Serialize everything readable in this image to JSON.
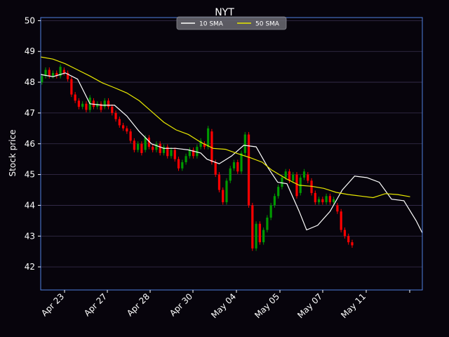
{
  "chart_data": {
    "type": "candlestick",
    "title": "NYT",
    "xlabel": "",
    "ylabel": "Stock price",
    "ylim": [
      41.25,
      50.1
    ],
    "yticks": [
      42,
      43,
      44,
      45,
      46,
      47,
      48,
      49,
      50
    ],
    "xtick_labels": [
      "Apr 23",
      "Apr 27",
      "Apr 28",
      "Apr 30",
      "May 04",
      "May 05",
      "May 07",
      "May 11",
      ""
    ],
    "grid": true,
    "legend_position": "top-center",
    "colors": {
      "background": "#07040c",
      "axes_frame": "#4f80e0",
      "grid": "#3a3050",
      "text": "#ffffff",
      "up": "#009a00",
      "down": "#ff0000",
      "sma10": "#ffffff",
      "sma50": "#e8e800"
    },
    "series": [
      {
        "name": "10 SMA",
        "points": [
          [
            0,
            48.25
          ],
          [
            20,
            48.18
          ],
          [
            40,
            48.3
          ],
          [
            60,
            48.1
          ],
          [
            80,
            47.3
          ],
          [
            100,
            47.25
          ],
          [
            120,
            47.25
          ],
          [
            140,
            46.9
          ],
          [
            160,
            46.4
          ],
          [
            180,
            46.0
          ],
          [
            200,
            45.85
          ],
          [
            220,
            45.85
          ],
          [
            240,
            45.8
          ],
          [
            260,
            45.7
          ],
          [
            270,
            45.5
          ],
          [
            290,
            45.35
          ],
          [
            310,
            45.6
          ],
          [
            330,
            45.95
          ],
          [
            350,
            45.9
          ],
          [
            370,
            45.2
          ],
          [
            385,
            44.75
          ],
          [
            400,
            44.7
          ],
          [
            420,
            43.8
          ],
          [
            432,
            43.2
          ],
          [
            450,
            43.35
          ],
          [
            470,
            43.8
          ],
          [
            490,
            44.5
          ],
          [
            510,
            44.95
          ],
          [
            530,
            44.9
          ],
          [
            550,
            44.75
          ],
          [
            570,
            44.2
          ],
          [
            590,
            44.15
          ],
          [
            610,
            43.5
          ],
          [
            620,
            43.1
          ]
        ]
      },
      {
        "name": "50 SMA",
        "points": [
          [
            0,
            48.82
          ],
          [
            20,
            48.75
          ],
          [
            40,
            48.6
          ],
          [
            60,
            48.4
          ],
          [
            80,
            48.2
          ],
          [
            100,
            47.98
          ],
          [
            120,
            47.82
          ],
          [
            140,
            47.65
          ],
          [
            160,
            47.4
          ],
          [
            180,
            47.05
          ],
          [
            200,
            46.7
          ],
          [
            220,
            46.45
          ],
          [
            240,
            46.3
          ],
          [
            260,
            46.05
          ],
          [
            280,
            45.85
          ],
          [
            300,
            45.82
          ],
          [
            320,
            45.68
          ],
          [
            340,
            45.55
          ],
          [
            360,
            45.4
          ],
          [
            375,
            45.15
          ],
          [
            400,
            44.85
          ],
          [
            420,
            44.65
          ],
          [
            440,
            44.62
          ],
          [
            460,
            44.55
          ],
          [
            480,
            44.42
          ],
          [
            500,
            44.35
          ],
          [
            520,
            44.3
          ],
          [
            540,
            44.25
          ],
          [
            560,
            44.38
          ],
          [
            580,
            44.35
          ],
          [
            600,
            44.28
          ]
        ]
      }
    ],
    "candles_note": "dense intraday bars; open/close sampled along the price path, wicks short",
    "candles": [
      [
        2,
        48.0,
        48.2
      ],
      [
        8,
        48.2,
        48.4
      ],
      [
        14,
        48.4,
        48.2
      ],
      [
        20,
        48.2,
        48.3
      ],
      [
        26,
        48.3,
        48.2
      ],
      [
        32,
        48.2,
        48.5
      ],
      [
        38,
        48.4,
        48.3
      ],
      [
        44,
        48.3,
        48.1
      ],
      [
        50,
        48.1,
        47.6
      ],
      [
        56,
        47.6,
        47.4
      ],
      [
        62,
        47.4,
        47.2
      ],
      [
        68,
        47.2,
        47.3
      ],
      [
        74,
        47.3,
        47.1
      ],
      [
        80,
        47.1,
        47.5
      ],
      [
        86,
        47.4,
        47.2
      ],
      [
        92,
        47.2,
        47.3
      ],
      [
        98,
        47.3,
        47.1
      ],
      [
        104,
        47.2,
        47.4
      ],
      [
        110,
        47.4,
        47.2
      ],
      [
        116,
        47.2,
        47.0
      ],
      [
        122,
        47.0,
        46.8
      ],
      [
        128,
        46.8,
        46.6
      ],
      [
        134,
        46.6,
        46.5
      ],
      [
        140,
        46.5,
        46.4
      ],
      [
        146,
        46.4,
        46.1
      ],
      [
        152,
        46.1,
        45.8
      ],
      [
        158,
        45.8,
        46.0
      ],
      [
        164,
        46.0,
        45.7
      ],
      [
        170,
        45.8,
        46.2
      ],
      [
        176,
        46.2,
        45.9
      ],
      [
        182,
        45.9,
        45.8
      ],
      [
        188,
        45.8,
        46.0
      ],
      [
        194,
        46.0,
        45.7
      ],
      [
        200,
        45.7,
        45.9
      ],
      [
        206,
        45.9,
        45.6
      ],
      [
        212,
        45.6,
        45.8
      ],
      [
        218,
        45.8,
        45.5
      ],
      [
        224,
        45.5,
        45.2
      ],
      [
        230,
        45.2,
        45.4
      ],
      [
        236,
        45.4,
        45.6
      ],
      [
        242,
        45.6,
        45.8
      ],
      [
        248,
        45.8,
        45.6
      ],
      [
        254,
        45.6,
        45.9
      ],
      [
        260,
        45.9,
        46.1
      ],
      [
        266,
        46.0,
        45.9
      ],
      [
        272,
        45.9,
        46.5
      ],
      [
        278,
        46.4,
        45.4
      ],
      [
        284,
        45.4,
        45.0
      ],
      [
        290,
        45.0,
        44.5
      ],
      [
        296,
        44.5,
        44.1
      ],
      [
        302,
        44.1,
        44.8
      ],
      [
        308,
        44.8,
        45.2
      ],
      [
        314,
        45.2,
        45.4
      ],
      [
        320,
        45.4,
        45.1
      ],
      [
        326,
        45.1,
        45.7
      ],
      [
        332,
        45.7,
        46.3
      ],
      [
        338,
        46.3,
        44.0
      ],
      [
        344,
        44.0,
        42.6
      ],
      [
        350,
        42.6,
        43.4
      ],
      [
        356,
        43.4,
        42.8
      ],
      [
        362,
        42.8,
        43.2
      ],
      [
        368,
        43.2,
        43.6
      ],
      [
        374,
        43.6,
        44.0
      ],
      [
        380,
        44.0,
        44.3
      ],
      [
        386,
        44.3,
        44.6
      ],
      [
        392,
        44.6,
        44.9
      ],
      [
        398,
        44.9,
        45.1
      ],
      [
        404,
        45.1,
        44.8
      ],
      [
        410,
        44.8,
        45.0
      ],
      [
        416,
        45.0,
        44.3
      ],
      [
        422,
        44.4,
        44.9
      ],
      [
        428,
        44.9,
        45.1
      ],
      [
        434,
        45.0,
        44.8
      ],
      [
        440,
        44.8,
        44.4
      ],
      [
        446,
        44.4,
        44.1
      ],
      [
        452,
        44.1,
        44.2
      ],
      [
        458,
        44.2,
        44.1
      ],
      [
        464,
        44.1,
        44.3
      ],
      [
        470,
        44.3,
        44.1
      ],
      [
        476,
        44.1,
        44.2
      ],
      [
        482,
        44.0,
        43.8
      ],
      [
        488,
        43.8,
        43.2
      ],
      [
        494,
        43.2,
        43.0
      ],
      [
        500,
        43.0,
        42.8
      ],
      [
        506,
        42.8,
        42.7
      ]
    ]
  }
}
